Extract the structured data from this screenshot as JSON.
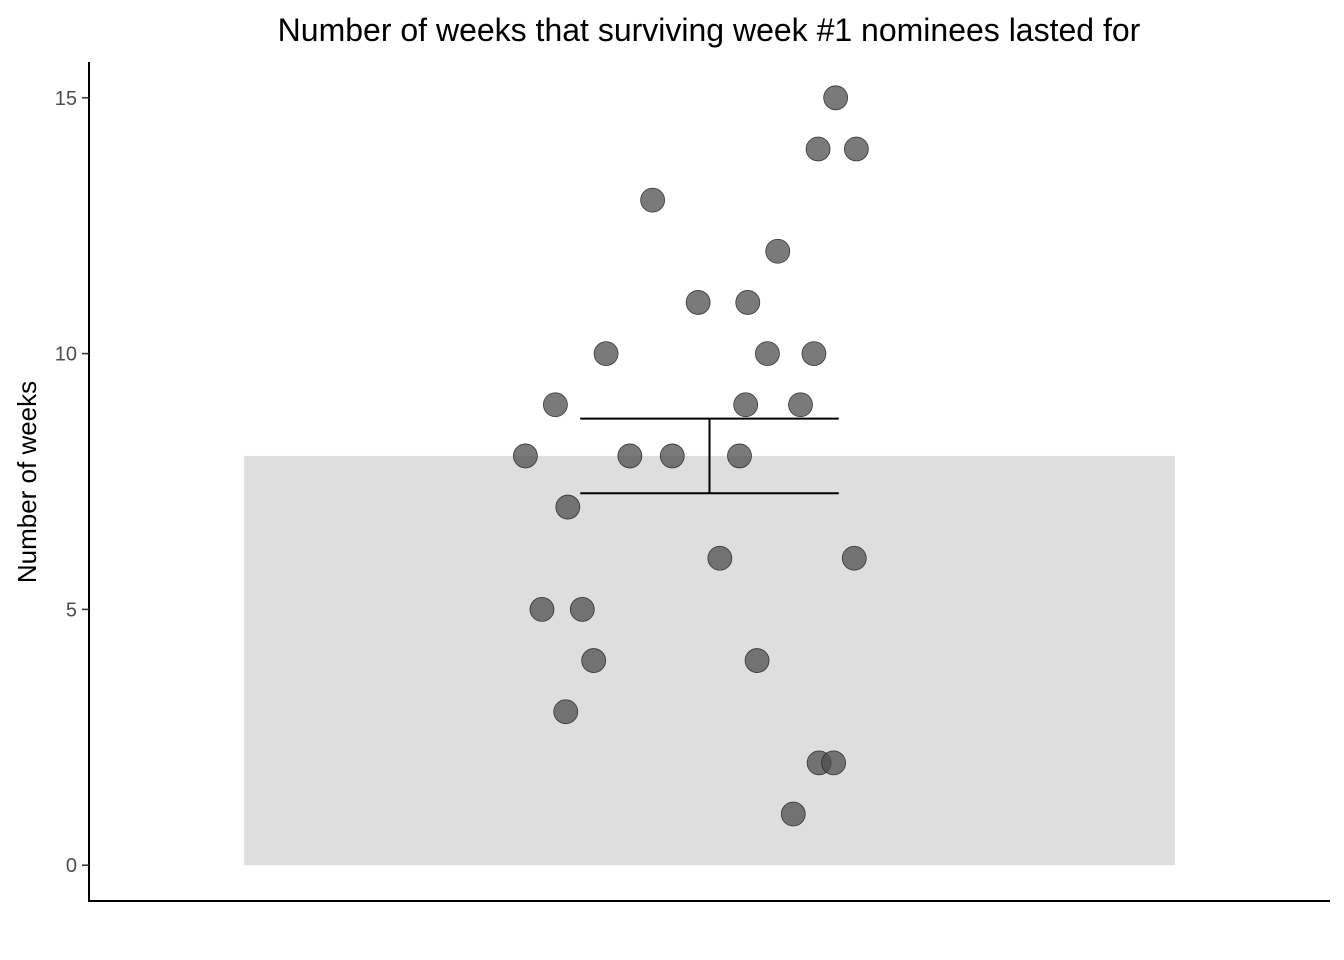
{
  "chart_data": {
    "type": "scatter",
    "title": "Number of weeks that surviving week #1 nominees lasted for",
    "xlabel": "",
    "ylabel": "Number of weeks",
    "ylim": [
      -0.7,
      15.7
    ],
    "y_ticks": [
      0,
      5,
      10,
      15
    ],
    "y_tick_labels": [
      "0",
      "5",
      "10",
      "15"
    ],
    "grid": false,
    "legend": "none",
    "shaded_band": {
      "ymin": 0,
      "ymax": 8,
      "color": "#dedede"
    },
    "error_bar": {
      "center": 1.0,
      "ymin": 7.27,
      "ymax": 8.73,
      "color": "#000000"
    },
    "point_color": "#4d4d4d",
    "point_opacity": 0.75,
    "points": [
      {
        "x": 1.122,
        "y": 15
      },
      {
        "x": 1.105,
        "y": 14
      },
      {
        "x": 1.142,
        "y": 14
      },
      {
        "x": 0.945,
        "y": 13
      },
      {
        "x": 1.066,
        "y": 12
      },
      {
        "x": 0.989,
        "y": 11
      },
      {
        "x": 1.037,
        "y": 11
      },
      {
        "x": 0.9,
        "y": 10
      },
      {
        "x": 1.056,
        "y": 10
      },
      {
        "x": 1.101,
        "y": 10
      },
      {
        "x": 0.851,
        "y": 9
      },
      {
        "x": 1.035,
        "y": 9
      },
      {
        "x": 1.088,
        "y": 9
      },
      {
        "x": 0.822,
        "y": 8
      },
      {
        "x": 0.923,
        "y": 8
      },
      {
        "x": 0.964,
        "y": 8
      },
      {
        "x": 1.029,
        "y": 8
      },
      {
        "x": 0.863,
        "y": 7
      },
      {
        "x": 1.01,
        "y": 6
      },
      {
        "x": 1.14,
        "y": 6
      },
      {
        "x": 0.838,
        "y": 5
      },
      {
        "x": 0.877,
        "y": 5
      },
      {
        "x": 0.888,
        "y": 4
      },
      {
        "x": 1.046,
        "y": 4
      },
      {
        "x": 0.861,
        "y": 3
      },
      {
        "x": 1.106,
        "y": 2
      },
      {
        "x": 1.12,
        "y": 2
      },
      {
        "x": 1.081,
        "y": 1
      }
    ]
  }
}
